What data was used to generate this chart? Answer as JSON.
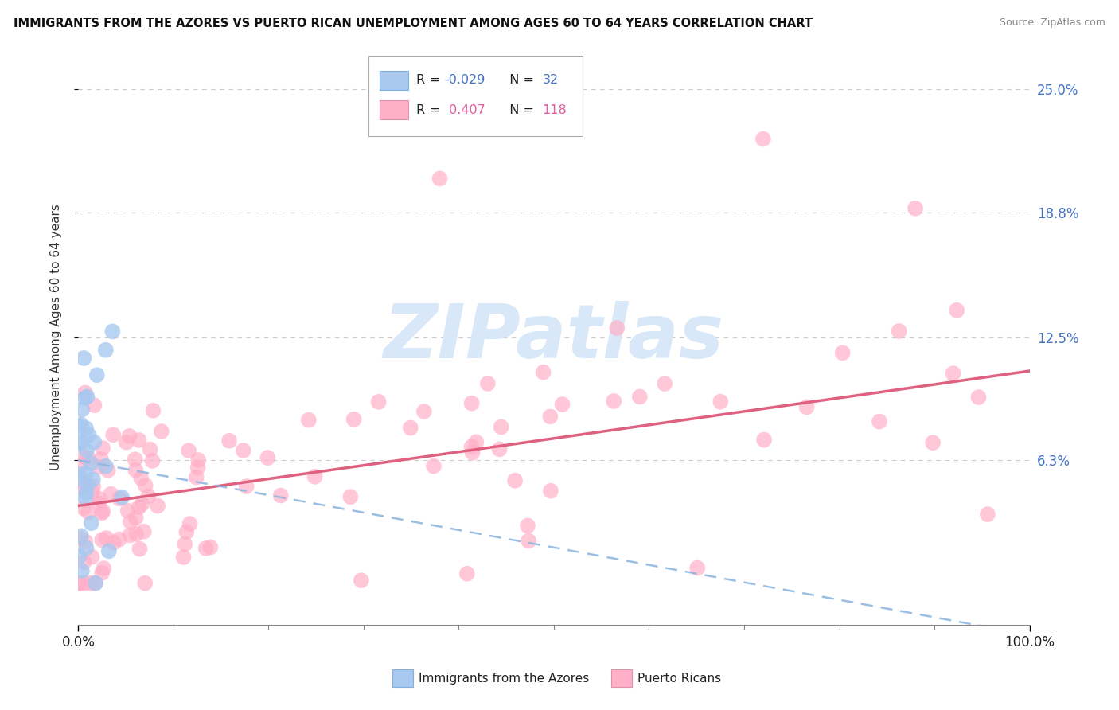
{
  "title": "IMMIGRANTS FROM THE AZORES VS PUERTO RICAN UNEMPLOYMENT AMONG AGES 60 TO 64 YEARS CORRELATION CHART",
  "source": "Source: ZipAtlas.com",
  "ylabel": "Unemployment Among Ages 60 to 64 years",
  "xlim": [
    0.0,
    1.0
  ],
  "ylim": [
    -0.02,
    0.27
  ],
  "xticklabels": [
    "0.0%",
    "100.0%"
  ],
  "yticklabels": [
    "6.3%",
    "12.5%",
    "18.8%",
    "25.0%"
  ],
  "ytick_values": [
    0.063,
    0.125,
    0.188,
    0.25
  ],
  "color_blue_fill": "#A8C8F0",
  "color_pink_fill": "#FFB0C8",
  "color_blue_dark": "#4472C4",
  "color_pink_line": "#E06080",
  "color_trendline_blue": "#90B8E0",
  "background": "#FFFFFF",
  "grid_color": "#CCCCCC",
  "watermark_color": "#D8E8F8",
  "xtick_minor": [
    0.1,
    0.2,
    0.3,
    0.4,
    0.5,
    0.6,
    0.7,
    0.8,
    0.9
  ]
}
